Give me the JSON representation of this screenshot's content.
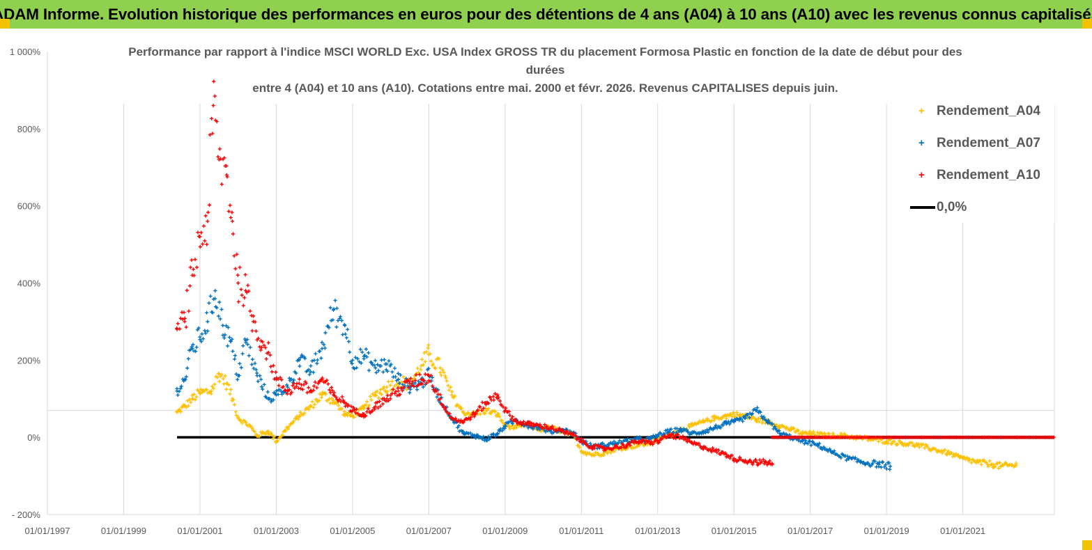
{
  "banner": {
    "title": "ADAM Informe. Evolution historique des performances en euros pour des détentions de 4 ans (A04) à 10 ans (A10) avec les revenus connus capitalisés"
  },
  "colors": {
    "banner": "#8fd14f",
    "corner": "#f2c200",
    "a04": "#ffc000",
    "a07": "#0070c0",
    "a10": "#ff0000",
    "zero": "#000000",
    "grid": "#d9d9d9",
    "text": "#595959"
  },
  "chart_data": {
    "type": "scatter",
    "title_lines": [
      "Performance par rapport à l'indice MSCI WORLD Exc. USA Index GROSS TR  du placement Formosa Plastic  en fonction de la date de début pour des",
      "durées",
      "entre 4 (A04) et 10 ans (A10). Cotations entre mai. 2000 et févr. 2026. Revenus CAPITALISES depuis juin."
    ],
    "x_range_years": [
      1997,
      2023.4
    ],
    "x_ticks": [
      {
        "year": 1997,
        "label": "01/01/1997"
      },
      {
        "year": 1999,
        "label": "01/01/1999"
      },
      {
        "year": 2001,
        "label": "01/01/2001"
      },
      {
        "year": 2003,
        "label": "01/01/2003"
      },
      {
        "year": 2005,
        "label": "01/01/2005"
      },
      {
        "year": 2007,
        "label": "01/01/2007"
      },
      {
        "year": 2009,
        "label": "01/01/2009"
      },
      {
        "year": 2011,
        "label": "01/01/2011"
      },
      {
        "year": 2013,
        "label": "01/01/2013"
      },
      {
        "year": 2015,
        "label": "01/01/2015"
      },
      {
        "year": 2017,
        "label": "01/01/2017"
      },
      {
        "year": 2019,
        "label": "01/01/2019"
      },
      {
        "year": 2021,
        "label": "01/01/2021"
      }
    ],
    "ylim": [
      -200,
      1000
    ],
    "y_ticks": [
      {
        "value": 1000,
        "label": "1 000%"
      },
      {
        "value": 800,
        "label": "800%"
      },
      {
        "value": 600,
        "label": "600%"
      },
      {
        "value": 400,
        "label": "400%"
      },
      {
        "value": 200,
        "label": "200%"
      },
      {
        "value": 0,
        "label": "0%"
      },
      {
        "value": -200,
        "label": "- 200%"
      }
    ],
    "series": [
      {
        "name": "Rendement_A04",
        "color": "#ffc000",
        "x": [
          2000.4,
          2000.6,
          2000.8,
          2001.0,
          2001.3,
          2001.5,
          2001.7,
          2001.85,
          2002.0,
          2002.3,
          2002.5,
          2002.8,
          2003.0,
          2003.3,
          2003.6,
          2003.9,
          2004.2,
          2004.5,
          2004.8,
          2005.0,
          2005.3,
          2005.6,
          2005.9,
          2006.2,
          2006.5,
          2006.8,
          2007.0,
          2007.3,
          2007.6,
          2007.9,
          2008.2,
          2008.5,
          2008.8,
          2009.0,
          2009.3,
          2009.6,
          2009.9,
          2010.2,
          2010.5,
          2010.8,
          2011.0,
          2011.3,
          2011.6,
          2011.9,
          2012.2,
          2012.5,
          2012.8,
          2013.0,
          2013.3,
          2013.6,
          2013.9,
          2014.2,
          2014.5,
          2014.8,
          2015.0,
          2015.3,
          2015.6,
          2015.9,
          2016.2,
          2016.5,
          2016.8,
          2017.0,
          2017.4,
          2017.8,
          2018.2,
          2018.6,
          2019.0,
          2019.4,
          2019.8,
          2020.2,
          2020.6,
          2021.0,
          2021.4,
          2021.8,
          2022.0,
          2022.4
        ],
        "values": [
          65,
          80,
          100,
          115,
          120,
          165,
          140,
          100,
          50,
          30,
          5,
          15,
          -10,
          25,
          55,
          80,
          110,
          95,
          60,
          55,
          75,
          110,
          130,
          150,
          135,
          185,
          215,
          180,
          110,
          65,
          60,
          70,
          60,
          30,
          25,
          35,
          20,
          25,
          15,
          5,
          -35,
          -45,
          -40,
          -30,
          -25,
          -20,
          -15,
          -5,
          5,
          20,
          30,
          40,
          50,
          55,
          60,
          55,
          45,
          40,
          30,
          20,
          10,
          10,
          5,
          5,
          0,
          -5,
          -10,
          -15,
          -20,
          -30,
          -40,
          -55,
          -65,
          -70,
          -75,
          -72
        ]
      },
      {
        "name": "Rendement_A07",
        "color": "#0070c0",
        "x": [
          2000.4,
          2000.6,
          2000.8,
          2001.0,
          2001.2,
          2001.4,
          2001.6,
          2001.8,
          2002.0,
          2002.2,
          2002.5,
          2002.8,
          2003.0,
          2003.3,
          2003.6,
          2003.9,
          2004.2,
          2004.5,
          2004.8,
          2005.0,
          2005.3,
          2005.6,
          2005.9,
          2006.2,
          2006.5,
          2006.8,
          2007.0,
          2007.3,
          2007.6,
          2007.9,
          2008.2,
          2008.5,
          2008.8,
          2009.0,
          2009.3,
          2009.6,
          2009.9,
          2010.2,
          2010.5,
          2010.8,
          2011.0,
          2011.3,
          2011.6,
          2011.9,
          2012.2,
          2012.5,
          2012.8,
          2013.0,
          2013.3,
          2013.6,
          2013.9,
          2014.2,
          2014.5,
          2014.8,
          2015.0,
          2015.3,
          2015.6,
          2015.9,
          2016.2,
          2016.5,
          2016.8,
          2017.2,
          2017.6,
          2018.0,
          2018.4,
          2018.8,
          2019.1
        ],
        "values": [
          120,
          150,
          230,
          260,
          300,
          380,
          290,
          250,
          160,
          250,
          160,
          100,
          110,
          130,
          200,
          170,
          230,
          330,
          290,
          200,
          210,
          180,
          190,
          150,
          130,
          140,
          160,
          100,
          50,
          10,
          5,
          -5,
          10,
          30,
          45,
          30,
          25,
          15,
          20,
          10,
          -10,
          -25,
          -20,
          -15,
          -10,
          -5,
          -5,
          5,
          15,
          20,
          10,
          15,
          25,
          35,
          40,
          50,
          70,
          40,
          10,
          0,
          -10,
          -20,
          -40,
          -55,
          -65,
          -70,
          -75
        ]
      },
      {
        "name": "Rendement_A10",
        "color": "#ff0000",
        "x": [
          2000.4,
          2000.6,
          2000.8,
          2001.0,
          2001.2,
          2001.35,
          2001.5,
          2001.7,
          2001.85,
          2002.0,
          2002.2,
          2002.4,
          2002.6,
          2002.8,
          2003.0,
          2003.3,
          2003.6,
          2003.9,
          2004.2,
          2004.5,
          2004.8,
          2005.0,
          2005.3,
          2005.6,
          2005.9,
          2006.2,
          2006.5,
          2006.8,
          2007.0,
          2007.3,
          2007.6,
          2007.9,
          2008.2,
          2008.5,
          2008.8,
          2009.0,
          2009.3,
          2009.6,
          2009.9,
          2010.2,
          2010.5,
          2010.8,
          2011.0,
          2011.3,
          2011.6,
          2011.9,
          2012.2,
          2012.5,
          2012.8,
          2013.0,
          2013.3,
          2013.6,
          2013.9,
          2014.2,
          2014.5,
          2014.8,
          2015.0,
          2015.3,
          2015.6,
          2015.9,
          2016.0
        ],
        "values": [
          280,
          300,
          420,
          520,
          560,
          860,
          720,
          680,
          560,
          400,
          380,
          300,
          250,
          220,
          150,
          120,
          140,
          120,
          150,
          110,
          90,
          70,
          60,
          80,
          100,
          120,
          140,
          150,
          160,
          100,
          50,
          40,
          60,
          90,
          110,
          70,
          40,
          35,
          30,
          25,
          15,
          5,
          -10,
          -25,
          -30,
          -25,
          -20,
          -10,
          -15,
          -10,
          5,
          0,
          -15,
          -25,
          -35,
          -45,
          -55,
          -60,
          -65,
          -65,
          -68
        ]
      }
    ],
    "zero_line": {
      "label": "0,0%",
      "value": 0,
      "x_range": [
        2000.4,
        2023.4
      ]
    },
    "a10_flat_after": {
      "from_year": 2016.0,
      "to_year": 2023.4,
      "value": 0
    }
  }
}
